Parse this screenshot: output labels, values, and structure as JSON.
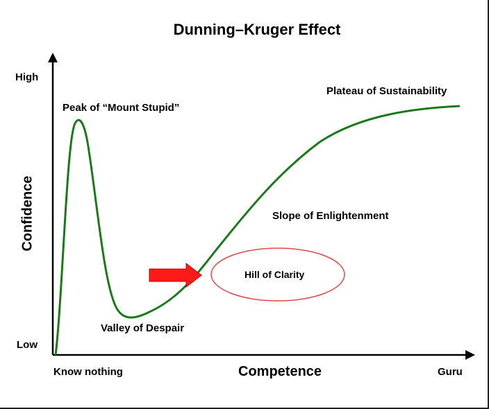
{
  "diagram": {
    "title": "Dunning–Kruger Effect",
    "y_axis": {
      "title": "Confidence",
      "top_label": "High",
      "bottom_label": "Low"
    },
    "x_axis": {
      "title": "Competence",
      "left_label": "Know nothing",
      "right_label": "Guru"
    },
    "stages": {
      "peak": "Peak of “Mount Stupid”",
      "valley": "Valley of Despair",
      "slope": "Slope of Enlightenment",
      "plateau": "Plateau of Sustainability",
      "hill": "Hill of Clarity"
    },
    "colors": {
      "curve": "#1a7a1a",
      "arrow": "#ff1a1a",
      "ellipse": "#e34848",
      "axis": "#000000"
    },
    "icons": {
      "pointer": "right-arrow-icon"
    }
  }
}
